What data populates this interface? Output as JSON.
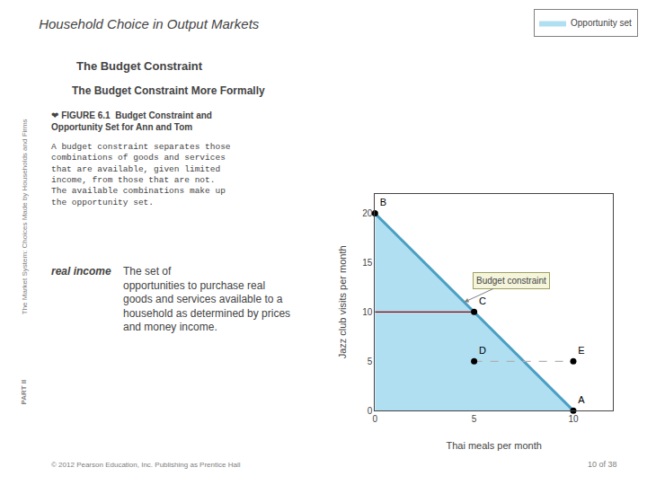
{
  "chart_data": {
    "type": "line",
    "title": "Household Choice in Output Markets",
    "subtitle": "The Budget Constraint",
    "xlabel": "Thai meals per month",
    "ylabel": "Jazz club visits per month",
    "xlim": [
      0,
      12
    ],
    "ylim": [
      0,
      22
    ],
    "xticks": [
      0,
      5,
      10
    ],
    "yticks": [
      0,
      5,
      10,
      15,
      20
    ],
    "grid": false,
    "legend": "upper right",
    "series": [
      {
        "name": "Opportunity set",
        "type": "area",
        "color": "#87CEEB",
        "x": [
          0,
          0,
          10
        ],
        "values": [
          0,
          20,
          0
        ]
      },
      {
        "type": "line",
        "color": "#4a9fc4",
        "x": [
          0,
          10
        ],
        "values": [
          20,
          0
        ]
      },
      {
        "type": "line",
        "color": "#8B0000",
        "x": [
          0,
          5
        ],
        "values": [
          10,
          10
        ]
      },
      {
        "type": "line",
        "color": "#b0b0b0",
        "line_style": "dashed",
        "x": [
          5,
          10
        ],
        "values": [
          5,
          5
        ]
      },
      {
        "type": "scatter",
        "color": "#000000",
        "marker": "circle",
        "x": [
          0,
          5,
          5,
          10,
          10
        ],
        "values": [
          20,
          10,
          5,
          5,
          0
        ],
        "labels": [
          "B",
          "C",
          "D",
          "E",
          "A"
        ]
      }
    ],
    "annotations": [
      {
        "text": "Budget constraint",
        "x": 4.5,
        "y": 11
      },
      {
        "text": "The Budget Constraint More Formally"
      },
      {
        "text": "❤ FIGURE 6.1  Budget Constraint and\nOpportunity Set for Ann and Tom"
      },
      {
        "text": "A budget constraint separates those\ncombinations of goods and services\nthat are available, given limited\nincome, from those that are not.\nThe available combinations make up\nthe opportunity set."
      },
      {
        "text": "real income"
      },
      {
        "text": "The set of\nopportunities to purchase real\ngoods and services available to a\nhousehold as determined by prices\nand money income."
      },
      {
        "text": "The Market System: Choices Made by Households and Firms"
      },
      {
        "text": "PART II"
      },
      {
        "text": "© 2012 Pearson Education, Inc. Publishing as Prentice Hall"
      },
      {
        "text": "10 of 38"
      }
    ]
  }
}
